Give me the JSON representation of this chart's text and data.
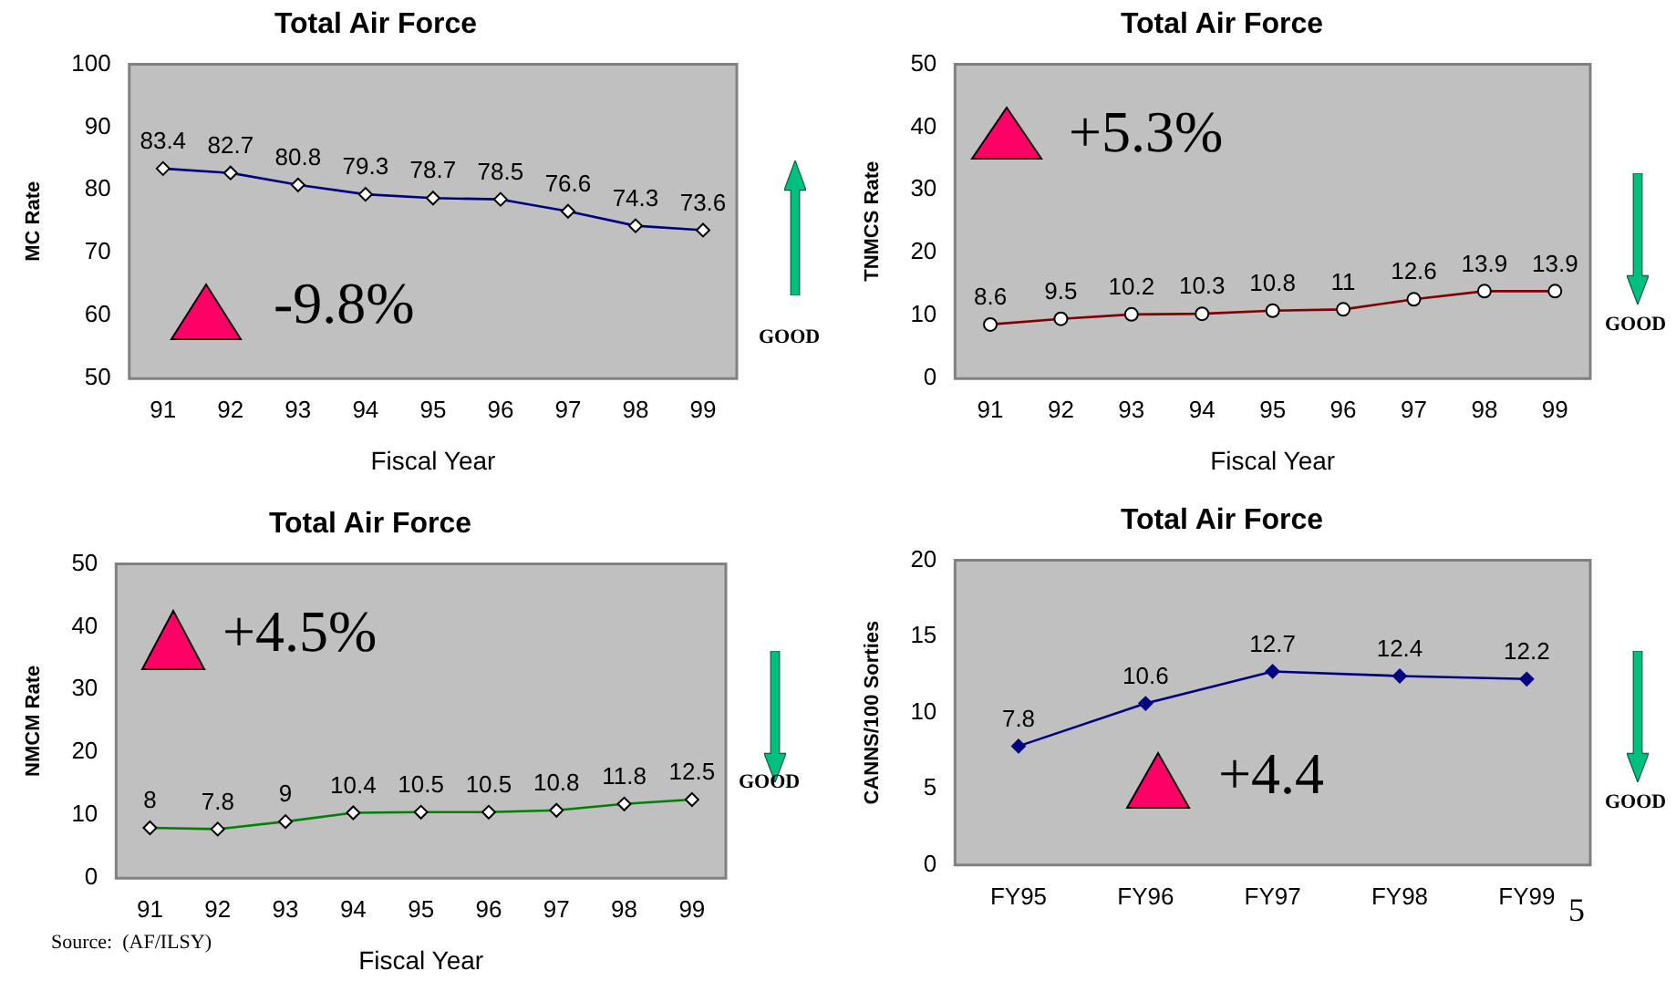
{
  "chart_data": [
    {
      "type": "line",
      "title": "Total Air Force",
      "xlabel": "Fiscal Year",
      "ylabel": "MC Rate",
      "categories": [
        "91",
        "92",
        "93",
        "94",
        "95",
        "96",
        "97",
        "98",
        "99"
      ],
      "series": [
        {
          "color": "#000080",
          "values": [
            83.4,
            82.7,
            80.8,
            79.3,
            78.7,
            78.5,
            76.6,
            74.3,
            73.6
          ]
        }
      ],
      "ylim": [
        50,
        100
      ],
      "yticks": [
        50,
        60,
        70,
        80,
        90,
        100
      ],
      "data_labels": true,
      "marker": "diamond",
      "annotations": [
        "-9.8%",
        "GOOD"
      ]
    },
    {
      "type": "line",
      "title": "Total Air Force",
      "xlabel": "Fiscal Year",
      "ylabel": "TNMCS Rate",
      "categories": [
        "91",
        "92",
        "93",
        "94",
        "95",
        "96",
        "97",
        "98",
        "99"
      ],
      "series": [
        {
          "color": "#800000",
          "values": [
            8.6,
            9.5,
            10.2,
            10.3,
            10.8,
            11,
            12.6,
            13.9,
            13.9
          ]
        }
      ],
      "ylim": [
        0,
        50
      ],
      "yticks": [
        0,
        10,
        20,
        30,
        40,
        50
      ],
      "data_labels": true,
      "marker": "circle",
      "annotations": [
        "+5.3%",
        "GOOD"
      ]
    },
    {
      "type": "line",
      "title": "Total Air Force",
      "xlabel": "Fiscal Year",
      "ylabel": "NMCM Rate",
      "categories": [
        "91",
        "92",
        "93",
        "94",
        "95",
        "96",
        "97",
        "98",
        "99"
      ],
      "series": [
        {
          "color": "#008000",
          "values": [
            8,
            7.8,
            9,
            10.4,
            10.5,
            10.5,
            10.8,
            11.8,
            12.5
          ]
        }
      ],
      "ylim": [
        0,
        50
      ],
      "yticks": [
        0,
        10,
        20,
        30,
        40,
        50
      ],
      "data_labels": true,
      "marker": "diamond",
      "annotations": [
        "+4.5%",
        "GOOD",
        "Source:  (AF/ILSY)"
      ]
    },
    {
      "type": "line",
      "title": "Total Air Force",
      "ylabel": "CANNS/100 Sorties",
      "categories": [
        "FY95",
        "FY96",
        "FY97",
        "FY98",
        "FY99"
      ],
      "series": [
        {
          "color": "#000080",
          "values": [
            7.8,
            10.6,
            12.7,
            12.4,
            12.2
          ]
        }
      ],
      "ylim": [
        0,
        20
      ],
      "yticks": [
        0,
        5,
        10,
        15,
        20
      ],
      "data_labels": true,
      "marker": "diamond",
      "annotations": [
        "+4.4",
        "GOOD",
        "5"
      ]
    }
  ]
}
